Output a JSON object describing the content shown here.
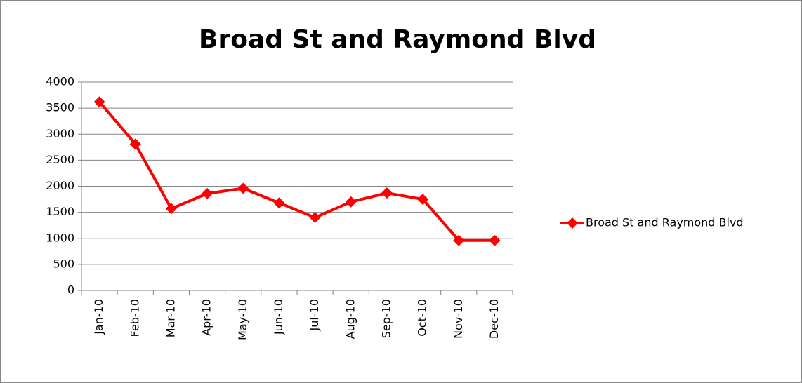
{
  "chart_data": {
    "type": "line",
    "title": "Broad St and Raymond Blvd",
    "categories": [
      "Jan-10",
      "Feb-10",
      "Mar-10",
      "Apr-10",
      "May-10",
      "Jun-10",
      "Jul-10",
      "Aug-10",
      "Sep-10",
      "Oct-10",
      "Nov-10",
      "Dec-10"
    ],
    "series": [
      {
        "name": "Broad St and Raymond Blvd",
        "color": "#ff0000",
        "values": [
          3620,
          2810,
          1570,
          1860,
          1960,
          1680,
          1400,
          1700,
          1870,
          1750,
          960,
          960
        ]
      }
    ],
    "ylim": [
      0,
      4000
    ],
    "yticks": [
      0,
      500,
      1000,
      1500,
      2000,
      2500,
      3000,
      3500,
      4000
    ],
    "grid": true,
    "legend": "right"
  }
}
